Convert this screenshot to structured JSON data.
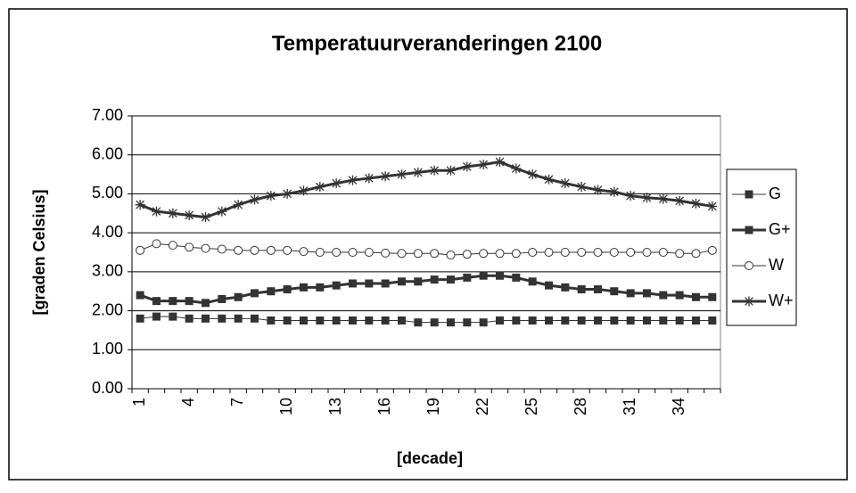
{
  "chart_data": {
    "type": "line",
    "title": "Temperatuurveranderingen 2100",
    "x_label": "[decade]",
    "y_label": "[graden Celsius]",
    "categories": [
      1,
      null,
      null,
      4,
      null,
      null,
      7,
      null,
      null,
      10,
      null,
      null,
      13,
      null,
      null,
      16,
      null,
      null,
      19,
      null,
      null,
      22,
      null,
      null,
      25,
      null,
      null,
      28,
      null,
      null,
      31,
      null,
      null,
      34,
      null,
      null
    ],
    "ylim": [
      0,
      7
    ],
    "yticks": [
      {
        "value": 0,
        "label": "0.00"
      },
      {
        "value": 1,
        "label": "1.00"
      },
      {
        "value": 2,
        "label": "2.00"
      },
      {
        "value": 3,
        "label": "3.00"
      },
      {
        "value": 4,
        "label": "4.00"
      },
      {
        "value": 5,
        "label": "5.00"
      },
      {
        "value": 6,
        "label": "6.00"
      },
      {
        "value": 7,
        "label": "7.00"
      }
    ],
    "grid": true,
    "legend": "right",
    "series": [
      {
        "name": "G",
        "color": "#333333",
        "marker": "square",
        "line_width": 1,
        "values": [
          1.8,
          1.85,
          1.85,
          1.8,
          1.8,
          1.8,
          1.8,
          1.8,
          1.75,
          1.75,
          1.75,
          1.75,
          1.75,
          1.75,
          1.75,
          1.75,
          1.75,
          1.7,
          1.7,
          1.7,
          1.7,
          1.7,
          1.75,
          1.75,
          1.75,
          1.75,
          1.75,
          1.75,
          1.75,
          1.75,
          1.75,
          1.75,
          1.75,
          1.75,
          1.75,
          1.75
        ]
      },
      {
        "name": "G+",
        "color": "#333333",
        "marker": "square",
        "line_width": 3,
        "values": [
          2.4,
          2.25,
          2.25,
          2.25,
          2.2,
          2.3,
          2.35,
          2.45,
          2.5,
          2.55,
          2.6,
          2.6,
          2.65,
          2.7,
          2.7,
          2.7,
          2.75,
          2.75,
          2.8,
          2.8,
          2.85,
          2.9,
          2.9,
          2.85,
          2.75,
          2.65,
          2.6,
          2.55,
          2.55,
          2.5,
          2.45,
          2.45,
          2.4,
          2.4,
          2.35,
          2.35
        ]
      },
      {
        "name": "W",
        "color": "#333333",
        "marker": "circle",
        "line_width": 1,
        "values": [
          3.55,
          3.72,
          3.68,
          3.63,
          3.6,
          3.58,
          3.55,
          3.55,
          3.55,
          3.55,
          3.52,
          3.5,
          3.5,
          3.5,
          3.5,
          3.48,
          3.47,
          3.47,
          3.47,
          3.43,
          3.45,
          3.47,
          3.47,
          3.47,
          3.5,
          3.5,
          3.5,
          3.5,
          3.5,
          3.5,
          3.5,
          3.5,
          3.5,
          3.47,
          3.47,
          3.55
        ]
      },
      {
        "name": "W+",
        "color": "#333333",
        "marker": "asterisk",
        "line_width": 3,
        "values": [
          4.72,
          4.55,
          4.5,
          4.45,
          4.4,
          4.55,
          4.72,
          4.85,
          4.95,
          5.0,
          5.08,
          5.18,
          5.27,
          5.35,
          5.4,
          5.45,
          5.5,
          5.55,
          5.6,
          5.6,
          5.7,
          5.75,
          5.82,
          5.65,
          5.5,
          5.37,
          5.27,
          5.18,
          5.1,
          5.05,
          4.95,
          4.9,
          4.87,
          4.82,
          4.75,
          4.68
        ]
      }
    ]
  }
}
